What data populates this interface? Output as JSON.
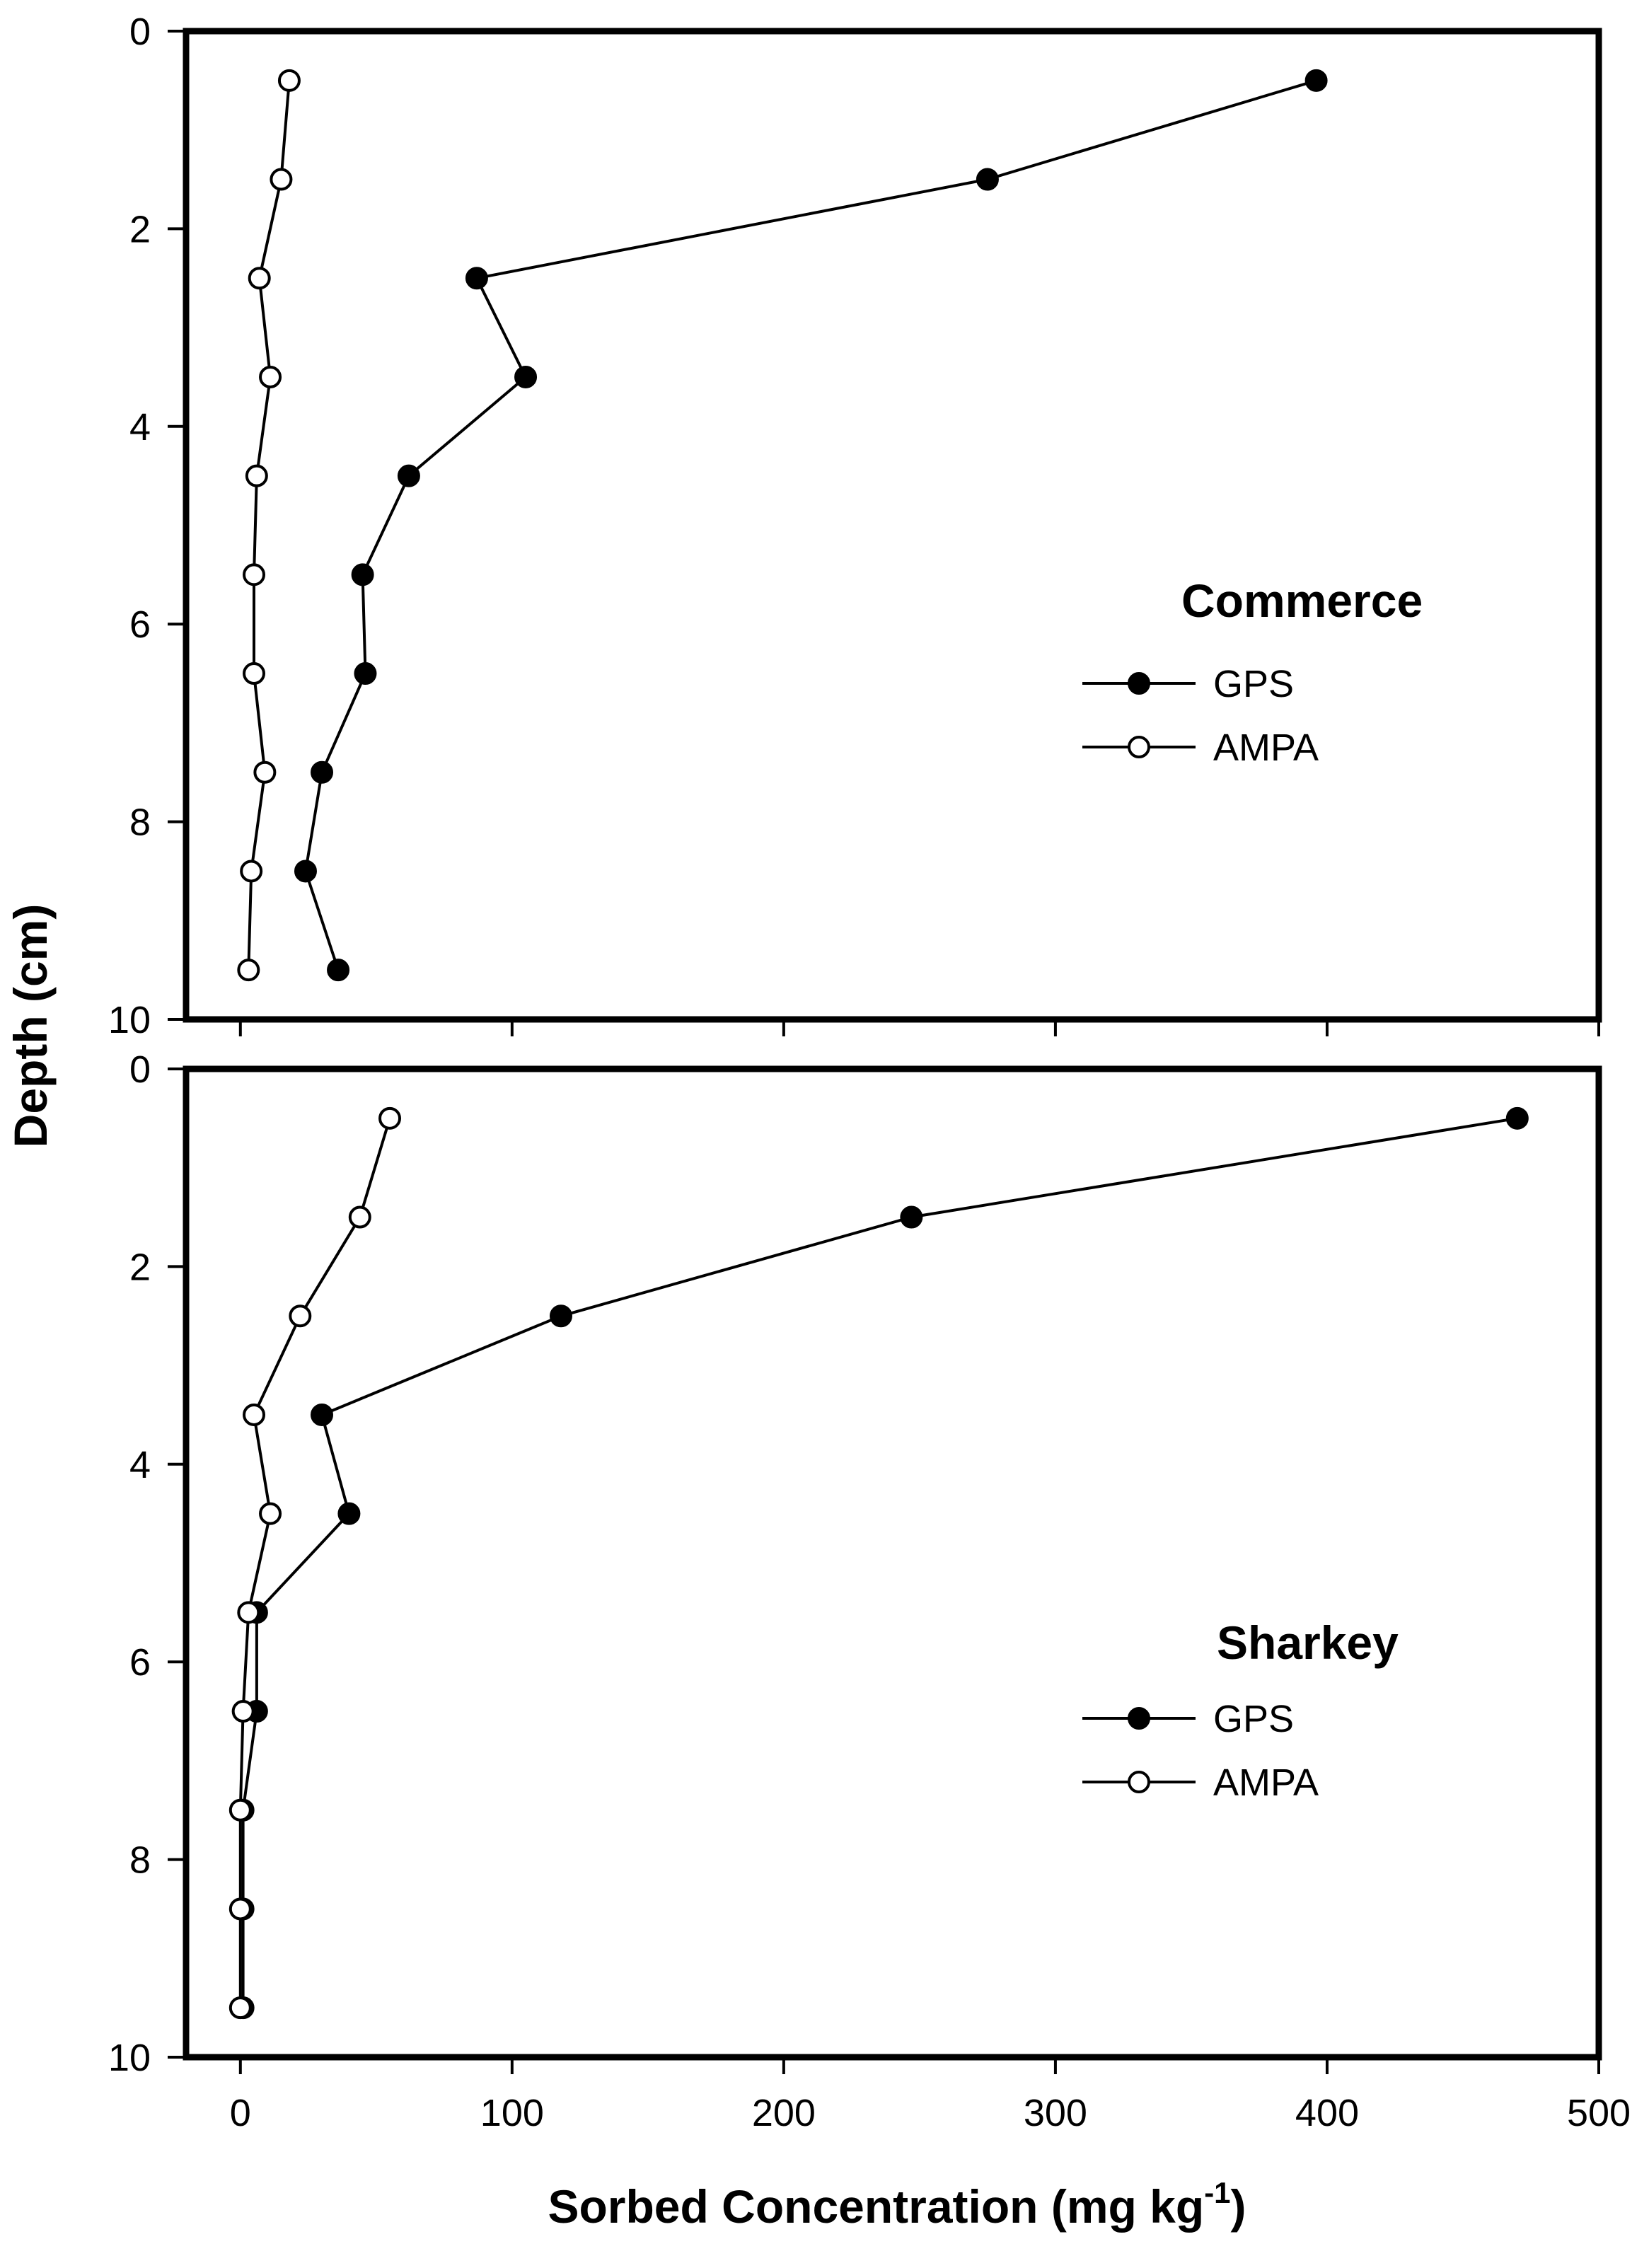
{
  "chart_data": {
    "type": "line",
    "orientation": "depth-profile",
    "shared_x_axis": {
      "label_main": "Sorbed Concentration (mg kg",
      "label_sup": "-1",
      "label_end": ")",
      "xlim": [
        -20,
        500
      ],
      "ticks": [
        0,
        100,
        200,
        300,
        400,
        500
      ]
    },
    "shared_y_axis": {
      "label": "Depth (cm)",
      "ylim": [
        0,
        10
      ],
      "inverted": true,
      "ticks": [
        0,
        2,
        4,
        6,
        8,
        10
      ]
    },
    "panels": [
      {
        "title": "Commerce",
        "legend_position": "right-middle",
        "series": [
          {
            "name": "GPS",
            "marker": "filled-circle",
            "color": "#000000",
            "points": [
              {
                "x": 396,
                "y": 0.5
              },
              {
                "x": 275,
                "y": 1.5
              },
              {
                "x": 87,
                "y": 2.5
              },
              {
                "x": 105,
                "y": 3.5
              },
              {
                "x": 62,
                "y": 4.5
              },
              {
                "x": 45,
                "y": 5.5
              },
              {
                "x": 46,
                "y": 6.5
              },
              {
                "x": 30,
                "y": 7.5
              },
              {
                "x": 24,
                "y": 8.5
              },
              {
                "x": 36,
                "y": 9.5
              }
            ]
          },
          {
            "name": "AMPA",
            "marker": "open-circle",
            "color": "#000000",
            "points": [
              {
                "x": 18,
                "y": 0.5
              },
              {
                "x": 15,
                "y": 1.5
              },
              {
                "x": 7,
                "y": 2.5
              },
              {
                "x": 11,
                "y": 3.5
              },
              {
                "x": 6,
                "y": 4.5
              },
              {
                "x": 5,
                "y": 5.5
              },
              {
                "x": 5,
                "y": 6.5
              },
              {
                "x": 9,
                "y": 7.5
              },
              {
                "x": 4,
                "y": 8.5
              },
              {
                "x": 3,
                "y": 9.5
              }
            ]
          }
        ]
      },
      {
        "title": "Sharkey",
        "legend_position": "right-lower",
        "series": [
          {
            "name": "GPS",
            "marker": "filled-circle",
            "color": "#000000",
            "points": [
              {
                "x": 470,
                "y": 0.5
              },
              {
                "x": 247,
                "y": 1.5
              },
              {
                "x": 118,
                "y": 2.5
              },
              {
                "x": 30,
                "y": 3.5
              },
              {
                "x": 40,
                "y": 4.5
              },
              {
                "x": 6,
                "y": 5.5
              },
              {
                "x": 6,
                "y": 6.5
              },
              {
                "x": 1,
                "y": 7.5
              },
              {
                "x": 1,
                "y": 8.5
              },
              {
                "x": 1,
                "y": 9.5
              }
            ]
          },
          {
            "name": "AMPA",
            "marker": "open-circle",
            "color": "#000000",
            "points": [
              {
                "x": 55,
                "y": 0.5
              },
              {
                "x": 44,
                "y": 1.5
              },
              {
                "x": 22,
                "y": 2.5
              },
              {
                "x": 5,
                "y": 3.5
              },
              {
                "x": 11,
                "y": 4.5
              },
              {
                "x": 3,
                "y": 5.5
              },
              {
                "x": 1,
                "y": 6.5
              },
              {
                "x": 0,
                "y": 7.5
              },
              {
                "x": 0,
                "y": 8.5
              },
              {
                "x": 0,
                "y": 9.5
              }
            ]
          }
        ]
      }
    ]
  }
}
